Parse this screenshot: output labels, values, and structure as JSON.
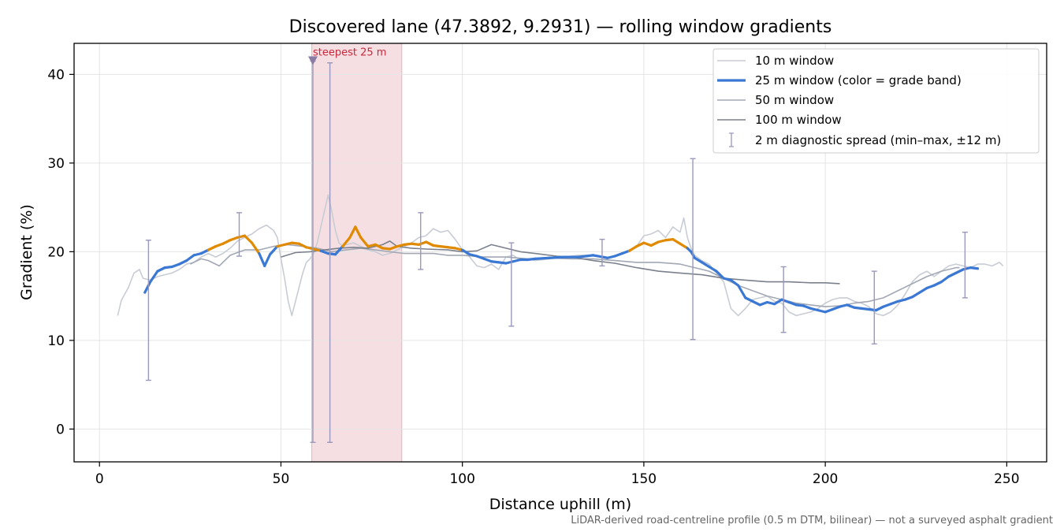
{
  "chart_data": {
    "type": "line",
    "title": "Discovered lane (47.3892, 9.2931) — rolling window gradients",
    "xlabel": "Distance uphill (m)",
    "ylabel": "Gradient (%)",
    "footnote": "LiDAR-derived road-centreline profile (0.5 m DTM, bilinear) — not a surveyed asphalt gradient",
    "xlim": [
      -7,
      261
    ],
    "ylim": [
      -3.7,
      43.5
    ],
    "xticks": [
      0,
      50,
      100,
      150,
      200,
      250
    ],
    "yticks": [
      0,
      10,
      20,
      30,
      40
    ],
    "grid": true,
    "legend_position": "top-right",
    "colors": {
      "w10": "#c8ccd4",
      "w25_base": "#3a78d4",
      "w25_steep": "#e08a00",
      "w50": "#a2a8b4",
      "w100": "#7a808c",
      "errbar": "#9a98bc",
      "highlight_fill": "#f6dfe2",
      "highlight_edge": "#e8b4bc",
      "highlight_text": "#c8283c",
      "marker": "#8a7ca4"
    },
    "steep_threshold": 20.2,
    "highlight": {
      "x_start": 58.5,
      "x_end": 83.3,
      "label": "steepest 25 m",
      "marker_x": 58.8,
      "marker_y": 41.5
    },
    "series": [
      {
        "name": "10 m window",
        "key": "w10",
        "x": [
          5,
          6,
          8,
          9.5,
          11,
          12,
          14,
          16,
          18,
          20,
          22,
          24,
          26,
          28,
          30,
          32,
          34,
          36,
          38,
          40,
          42,
          44,
          46,
          48,
          49,
          50,
          51,
          52,
          53,
          54,
          55,
          56,
          57,
          58,
          59,
          60,
          61,
          62,
          63,
          64,
          65,
          66,
          67,
          68,
          70,
          72,
          74,
          76,
          78,
          80,
          82,
          84,
          86,
          88,
          90,
          92,
          94,
          96,
          98,
          100,
          102,
          104,
          106,
          108,
          110,
          112,
          114,
          116,
          118,
          120,
          124,
          128,
          132,
          136,
          140,
          144,
          148,
          150,
          152,
          154,
          156,
          158,
          160,
          161,
          162,
          163,
          164,
          166,
          168,
          170,
          172,
          174,
          176,
          178,
          180,
          182,
          184,
          186,
          188,
          190,
          192,
          194,
          196,
          198,
          200,
          202,
          204,
          206,
          208,
          210,
          212,
          214,
          216,
          218,
          220,
          222,
          224,
          226,
          228,
          230,
          232,
          234,
          236,
          238,
          240,
          242,
          244,
          246,
          248,
          249
        ],
        "y": [
          12.8,
          14.5,
          16.0,
          17.6,
          18.0,
          17.0,
          16.8,
          17.2,
          17.4,
          17.6,
          18.0,
          18.6,
          18.8,
          19.4,
          19.8,
          19.4,
          19.8,
          20.4,
          21.2,
          21.6,
          22.0,
          22.6,
          23.0,
          22.4,
          21.6,
          19.2,
          17.0,
          14.4,
          12.8,
          14.4,
          16.0,
          17.6,
          18.8,
          19.2,
          19.8,
          21.0,
          22.8,
          24.6,
          26.4,
          24.6,
          22.4,
          21.0,
          20.6,
          20.8,
          21.0,
          20.6,
          20.2,
          20.0,
          19.6,
          19.8,
          20.2,
          20.6,
          21.0,
          21.6,
          21.8,
          22.6,
          22.2,
          22.4,
          21.4,
          20.2,
          19.4,
          18.4,
          18.2,
          18.6,
          18.0,
          19.4,
          19.6,
          19.0,
          19.2,
          19.0,
          19.2,
          19.4,
          19.6,
          19.6,
          19.2,
          19.8,
          20.6,
          21.8,
          22.0,
          22.4,
          21.6,
          22.8,
          22.2,
          23.8,
          21.6,
          20.4,
          19.6,
          19.0,
          18.6,
          17.6,
          16.6,
          13.6,
          12.8,
          13.6,
          14.6,
          14.8,
          15.0,
          14.4,
          14.2,
          13.2,
          12.8,
          13.0,
          13.2,
          13.6,
          14.2,
          14.6,
          14.8,
          14.8,
          14.4,
          14.2,
          13.8,
          13.0,
          12.8,
          13.2,
          14.0,
          15.2,
          16.6,
          17.4,
          17.8,
          17.2,
          17.8,
          18.4,
          18.6,
          18.4,
          18.2,
          18.6,
          18.6,
          18.4,
          18.8,
          18.4
        ]
      },
      {
        "name": "25 m window (color = grade band)",
        "key": "w25",
        "x": [
          12.5,
          14,
          16,
          18,
          20,
          22,
          24,
          26,
          28,
          30,
          32,
          34,
          36,
          38,
          40,
          42,
          44,
          45.5,
          47,
          49,
          51,
          53,
          55,
          57,
          59,
          61,
          63,
          65,
          67,
          69,
          70.5,
          72,
          74,
          76,
          78,
          80,
          82,
          84,
          86,
          88,
          90,
          92,
          94,
          96,
          98,
          100,
          102,
          104,
          106,
          108,
          110,
          112,
          114,
          116,
          118,
          120,
          124,
          128,
          132,
          136,
          140,
          142,
          144,
          146,
          148,
          150,
          152,
          154,
          156,
          158,
          160,
          162,
          163,
          164,
          166,
          168,
          170,
          172,
          174,
          176,
          178,
          180,
          182,
          184,
          186,
          188,
          190,
          192,
          194,
          196,
          198,
          200,
          202,
          204,
          206,
          208,
          210,
          212,
          214,
          216,
          218,
          220,
          222,
          224,
          226,
          228,
          230,
          232,
          234,
          236,
          238,
          240,
          242
        ],
        "y": [
          15.4,
          16.6,
          17.8,
          18.2,
          18.3,
          18.6,
          19.0,
          19.6,
          19.8,
          20.2,
          20.6,
          20.9,
          21.3,
          21.6,
          21.8,
          21.0,
          19.8,
          18.4,
          19.7,
          20.6,
          20.8,
          21.0,
          20.9,
          20.5,
          20.3,
          20.1,
          19.8,
          19.7,
          20.6,
          21.6,
          22.8,
          21.6,
          20.6,
          20.8,
          20.4,
          20.3,
          20.6,
          20.8,
          20.9,
          20.8,
          21.1,
          20.7,
          20.6,
          20.5,
          20.4,
          20.2,
          19.7,
          19.5,
          19.2,
          18.9,
          18.8,
          18.7,
          18.9,
          19.1,
          19.1,
          19.2,
          19.3,
          19.4,
          19.4,
          19.6,
          19.3,
          19.5,
          19.8,
          20.1,
          20.6,
          21.0,
          20.7,
          21.1,
          21.3,
          21.4,
          20.9,
          20.4,
          20.0,
          19.3,
          18.8,
          18.3,
          17.8,
          17.0,
          16.8,
          16.2,
          14.8,
          14.4,
          14.0,
          14.3,
          14.1,
          14.6,
          14.3,
          14.0,
          13.9,
          13.6,
          13.4,
          13.2,
          13.5,
          13.8,
          14.0,
          13.7,
          13.6,
          13.5,
          13.4,
          13.8,
          14.1,
          14.4,
          14.6,
          14.9,
          15.4,
          15.9,
          16.2,
          16.6,
          17.2,
          17.6,
          18.0,
          18.2,
          18.1
        ]
      },
      {
        "name": "50 m window",
        "key": "w50",
        "x": [
          25,
          28,
          30,
          33,
          36,
          40,
          44,
          48,
          52,
          56,
          60,
          64,
          68,
          72,
          76,
          80,
          84,
          88,
          92,
          96,
          100,
          106,
          112,
          118,
          124,
          130,
          136,
          142,
          148,
          154,
          160,
          164,
          168,
          172,
          176,
          180,
          184,
          188,
          192,
          196,
          200,
          204,
          208,
          212,
          216,
          220,
          224,
          228,
          232,
          236,
          237
        ],
        "y": [
          18.6,
          19.2,
          19.0,
          18.4,
          19.6,
          20.2,
          20.2,
          20.6,
          20.8,
          20.6,
          20.4,
          20.0,
          20.2,
          20.4,
          20.2,
          20.0,
          19.8,
          19.8,
          19.8,
          19.6,
          19.6,
          19.4,
          19.4,
          19.2,
          19.3,
          19.2,
          19.2,
          19.0,
          18.8,
          18.8,
          18.6,
          18.2,
          17.8,
          17.0,
          16.2,
          15.6,
          15.0,
          14.6,
          14.2,
          14.0,
          13.8,
          13.9,
          14.2,
          14.4,
          14.8,
          15.6,
          16.4,
          17.2,
          17.8,
          18.2,
          18.2
        ]
      },
      {
        "name": "100 m window",
        "key": "w100",
        "x": [
          50,
          54,
          58,
          62,
          66,
          70,
          74,
          78,
          80,
          82,
          86,
          90,
          96,
          100,
          104,
          108,
          112,
          116,
          120,
          126,
          130,
          136,
          142,
          148,
          154,
          160,
          166,
          172,
          178,
          184,
          190,
          196,
          200,
          204
        ],
        "y": [
          19.4,
          19.9,
          20.0,
          20.2,
          20.4,
          20.5,
          20.4,
          20.8,
          21.2,
          20.6,
          20.4,
          20.3,
          20.2,
          20.0,
          20.1,
          20.8,
          20.4,
          20.0,
          19.8,
          19.5,
          19.4,
          19.0,
          18.7,
          18.2,
          17.8,
          17.6,
          17.4,
          17.0,
          16.8,
          16.6,
          16.6,
          16.5,
          16.5,
          16.4
        ]
      }
    ],
    "diagnostic_spread": {
      "name": "2 m diagnostic spread (min–max, ±12 m)",
      "points": [
        {
          "x": 13.5,
          "min": 5.5,
          "max": 21.3
        },
        {
          "x": 38.5,
          "min": 19.5,
          "max": 24.4
        },
        {
          "x": 58.8,
          "min": -1.5,
          "max": 41.5
        },
        {
          "x": 63.5,
          "min": -1.5,
          "max": 41.3
        },
        {
          "x": 88.5,
          "min": 18.0,
          "max": 24.4
        },
        {
          "x": 113.5,
          "min": 11.6,
          "max": 21.0
        },
        {
          "x": 138.5,
          "min": 18.4,
          "max": 21.4
        },
        {
          "x": 163.5,
          "min": 10.1,
          "max": 30.5
        },
        {
          "x": 188.5,
          "min": 10.9,
          "max": 18.3
        },
        {
          "x": 213.5,
          "min": 9.6,
          "max": 17.8
        },
        {
          "x": 238.5,
          "min": 14.8,
          "max": 22.2
        }
      ]
    }
  }
}
